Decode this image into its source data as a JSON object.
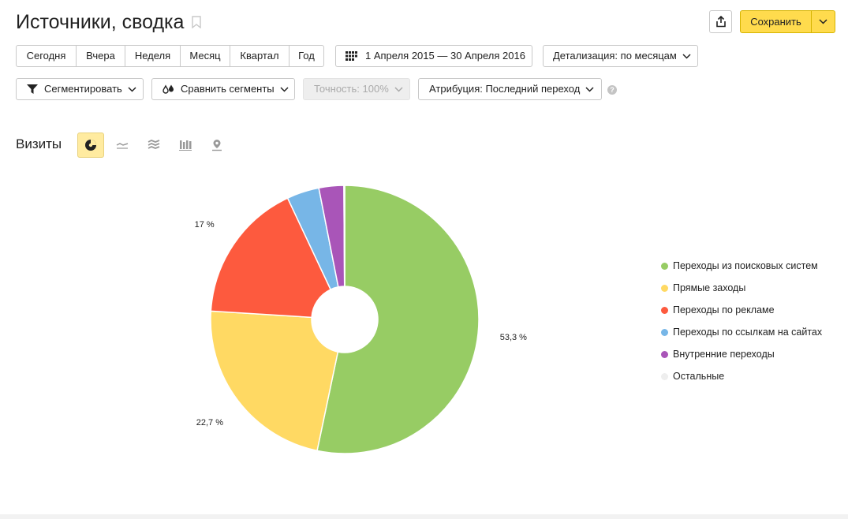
{
  "header": {
    "title": "Источники, сводка",
    "save_label": "Сохранить"
  },
  "period_tabs": [
    "Сегодня",
    "Вчера",
    "Неделя",
    "Месяц",
    "Квартал",
    "Год"
  ],
  "date_range": "1 Апреля 2015 — 30 Апреля 2016",
  "detail_label": "Детализация: по месяцам",
  "segment_label": "Сегментировать",
  "compare_label": "Сравнить сегменты",
  "accuracy_label": "Точность: 100%",
  "attribution_label": "Атрибуция: Последний переход",
  "help_text": "?",
  "metric_title": "Визиты",
  "view_buttons": [
    "pie-chart-icon",
    "line-chart-icon",
    "area-chart-icon",
    "bar-chart-icon",
    "map-icon"
  ],
  "legend": [
    {
      "label": "Переходы из поисковых систем",
      "color": "#97cc64"
    },
    {
      "label": "Прямые заходы",
      "color": "#ffd963"
    },
    {
      "label": "Переходы по рекламе",
      "color": "#fd5a3e"
    },
    {
      "label": "Переходы по ссылкам на сайтах",
      "color": "#77b6e7"
    },
    {
      "label": "Внутренние переходы",
      "color": "#a955b8"
    },
    {
      "label": "Остальные",
      "color": "#eeeeee"
    }
  ],
  "chart_data": {
    "type": "pie",
    "donut": true,
    "categories": [
      "Переходы из поисковых систем",
      "Прямые заходы",
      "Переходы по рекламе",
      "Переходы по ссылкам на сайтах",
      "Внутренние переходы",
      "Остальные"
    ],
    "values": [
      53.3,
      22.7,
      17.0,
      3.9,
      3.0,
      0.1
    ],
    "colors": [
      "#97cc64",
      "#ffd963",
      "#fd5a3e",
      "#77b6e7",
      "#a955b8",
      "#eeeeee"
    ],
    "value_labels": [
      "53,3 %",
      "22,7 %",
      "17 %",
      "",
      "",
      ""
    ],
    "legend_position": "right"
  }
}
